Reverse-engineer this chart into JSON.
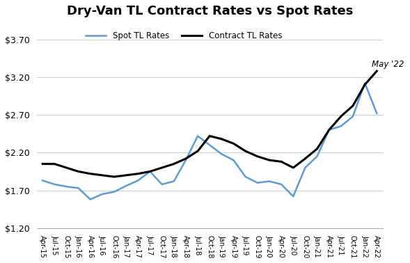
{
  "title": "Dry-Van TL Contract Rates vs Spot Rates",
  "ylabel": "",
  "ylim": [
    1.2,
    3.9
  ],
  "yticks": [
    1.2,
    1.7,
    2.2,
    2.7,
    3.2,
    3.7
  ],
  "ytick_labels": [
    "$1.20",
    "$1.70",
    "$2.20",
    "$2.70",
    "$3.20",
    "$3.70"
  ],
  "annotation": "May '22",
  "spot_color": "#5b9bd5",
  "contract_color": "#000000",
  "background_color": "#ffffff",
  "legend_spot": "Spot TL Rates",
  "legend_contract": "Contract TL Rates",
  "x_labels": [
    "Apr-15",
    "Jul-15",
    "Oct-15",
    "Jan-16",
    "Apr-16",
    "Jul-16",
    "Oct-16",
    "Jan-17",
    "Apr-17",
    "Jul-17",
    "Oct-17",
    "Jan-18",
    "Apr-18",
    "Jul-18",
    "Oct-18",
    "Jan-19",
    "Apr-19",
    "Jul-19",
    "Oct-19",
    "Jan-20",
    "Apr-20",
    "Jul-20",
    "Oct-20",
    "Jan-21",
    "Apr-21",
    "Jul-21",
    "Oct-21",
    "Jan-22",
    "Apr-22"
  ],
  "spot_values": [
    1.83,
    1.78,
    1.75,
    1.73,
    1.58,
    1.65,
    1.68,
    1.76,
    1.83,
    1.95,
    1.78,
    1.82,
    2.1,
    2.42,
    2.3,
    2.18,
    2.1,
    1.88,
    1.8,
    1.82,
    1.78,
    1.62,
    2.0,
    2.15,
    2.5,
    2.55,
    2.68,
    3.12,
    2.72
  ],
  "contract_values": [
    2.05,
    2.05,
    2.0,
    1.95,
    1.92,
    1.9,
    1.88,
    1.9,
    1.92,
    1.95,
    2.0,
    2.05,
    2.12,
    2.22,
    2.42,
    2.38,
    2.32,
    2.22,
    2.15,
    2.1,
    2.08,
    2.0,
    2.12,
    2.25,
    2.5,
    2.68,
    2.82,
    3.1,
    3.28
  ]
}
